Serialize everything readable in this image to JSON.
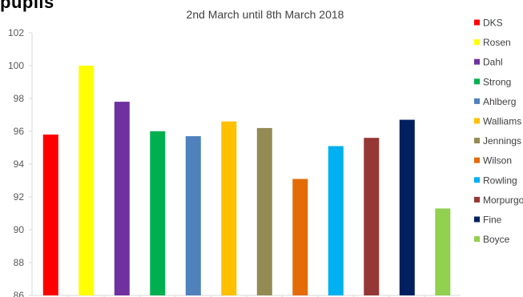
{
  "cropped_heading": "pupils",
  "chart_data": {
    "type": "bar",
    "title": "2nd March until 8th March 2018",
    "xlabel": "",
    "ylabel": "",
    "ylim": [
      86,
      102
    ],
    "yticks": [
      86,
      88,
      90,
      92,
      94,
      96,
      98,
      100,
      102
    ],
    "grid": false,
    "legend_position": "right",
    "categories": [
      "DKS",
      "Rosen",
      "Dahl",
      "Strong",
      "Ahlberg",
      "Walliams",
      "Jennings",
      "Wilson",
      "Rowling",
      "Morpurgo",
      "Fine",
      "Boyce"
    ],
    "values": [
      95.8,
      100.0,
      97.8,
      96.0,
      95.7,
      96.6,
      96.2,
      93.1,
      95.1,
      95.6,
      96.7,
      91.3
    ],
    "colors": [
      "#ff0000",
      "#ffff00",
      "#7030a0",
      "#00b050",
      "#4f81bd",
      "#ffc000",
      "#948a54",
      "#e36c09",
      "#00b0f0",
      "#953735",
      "#002060",
      "#92d050"
    ]
  }
}
